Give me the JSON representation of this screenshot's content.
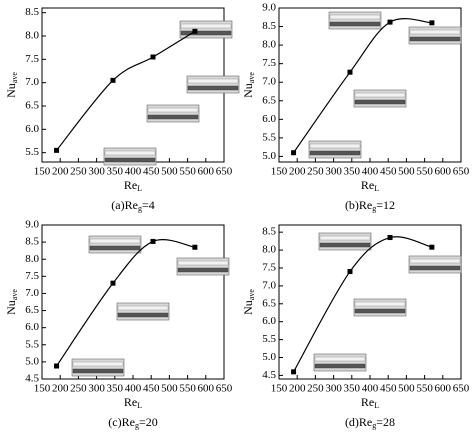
{
  "chart_data": [
    {
      "type": "line",
      "x": [
        190,
        345,
        455,
        570
      ],
      "values": [
        5.55,
        7.05,
        7.55,
        8.1
      ],
      "color": "#000000",
      "xlim": [
        150,
        650
      ],
      "xticks": [
        150,
        200,
        250,
        300,
        350,
        400,
        450,
        500,
        550,
        600,
        650
      ],
      "ylim": [
        5.3,
        8.6
      ],
      "yticks": [
        5.5,
        {
          "value": 6,
          "label": "6.0"
        },
        6.5,
        {
          "value": 7,
          "label": "7.0"
        },
        7.5,
        {
          "value": 8,
          "label": "8.0"
        },
        8.5
      ],
      "y_label": {
        "main": "Nu",
        "sub": "ave"
      },
      "x_label": {
        "main": "Re",
        "sub": "L"
      },
      "caption": {
        "text": "(a)Re",
        "sub": "g",
        "tail": "=4"
      }
    },
    {
      "type": "line",
      "x": [
        190,
        345,
        455,
        570
      ],
      "values": [
        5.1,
        7.27,
        8.62,
        8.6
      ],
      "color": "#000000",
      "xlim": [
        150,
        650
      ],
      "xticks": [
        150,
        200,
        250,
        300,
        350,
        400,
        450,
        500,
        550,
        600,
        650
      ],
      "ylim": [
        4.85,
        9.0
      ],
      "yticks": [
        {
          "value": 5,
          "label": "5.0"
        },
        5.5,
        {
          "value": 6,
          "label": "6.0"
        },
        6.5,
        {
          "value": 7,
          "label": "7.0"
        },
        7.5,
        {
          "value": 8,
          "label": "8.0"
        },
        8.5,
        {
          "value": 9,
          "label": "9.0"
        }
      ],
      "y_label": {
        "main": "Nu",
        "sub": "ave"
      },
      "x_label": {
        "main": "Re",
        "sub": "L"
      },
      "caption": {
        "text": "(b)Re",
        "sub": "g",
        "tail": "=12"
      }
    },
    {
      "type": "line",
      "x": [
        190,
        345,
        455,
        570
      ],
      "values": [
        4.88,
        7.3,
        8.52,
        8.35
      ],
      "color": "#000000",
      "xlim": [
        150,
        650
      ],
      "xticks": [
        150,
        200,
        250,
        300,
        350,
        400,
        450,
        500,
        550,
        600,
        650
      ],
      "ylim": [
        4.5,
        9.0
      ],
      "yticks": [
        4.5,
        {
          "value": 5,
          "label": "5.0"
        },
        5.5,
        {
          "value": 6,
          "label": "6.0"
        },
        6.5,
        {
          "value": 7,
          "label": "7.0"
        },
        7.5,
        {
          "value": 8,
          "label": "8.0"
        },
        8.5,
        {
          "value": 9,
          "label": "9.0"
        }
      ],
      "y_label": {
        "main": "Nu",
        "sub": "ave"
      },
      "x_label": {
        "main": "Re",
        "sub": "L"
      },
      "caption": {
        "text": "(c)Re",
        "sub": "g",
        "tail": "=20"
      }
    },
    {
      "type": "line",
      "x": [
        190,
        345,
        455,
        570
      ],
      "values": [
        4.6,
        7.4,
        8.35,
        8.08
      ],
      "color": "#000000",
      "xlim": [
        150,
        650
      ],
      "xticks": [
        150,
        200,
        250,
        300,
        350,
        400,
        450,
        500,
        550,
        600,
        650
      ],
      "ylim": [
        4.4,
        8.7
      ],
      "yticks": [
        4.5,
        {
          "value": 5,
          "label": "5.0"
        },
        5.5,
        {
          "value": 6,
          "label": "6.0"
        },
        6.5,
        {
          "value": 7,
          "label": "7.0"
        },
        7.5,
        {
          "value": 8,
          "label": "8.0"
        },
        8.5
      ],
      "y_label": {
        "main": "Nu",
        "sub": "ave"
      },
      "x_label": {
        "main": "Re",
        "sub": "L"
      },
      "caption": {
        "text": "(d)Re",
        "sub": "g",
        "tail": "=28"
      }
    }
  ]
}
